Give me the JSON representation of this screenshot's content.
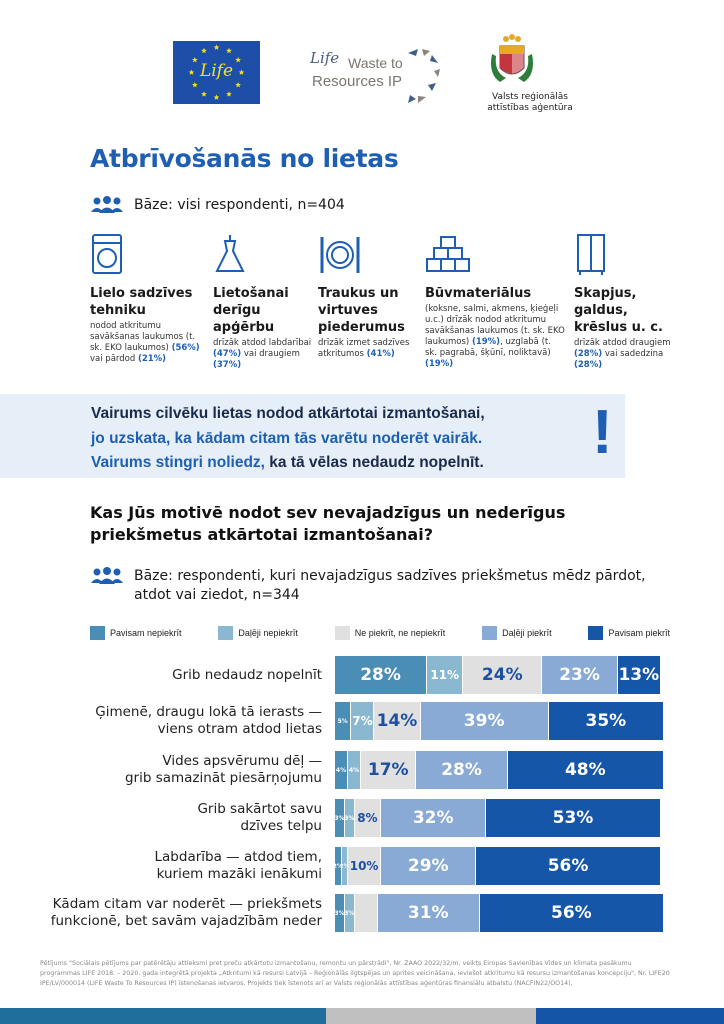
{
  "header": {
    "eu_logo_text": "Life",
    "wtr_logo": {
      "life": "Life",
      "line1": "Waste to",
      "line2": "Resources IP"
    },
    "vraa_text": "Valsts reģionālās attīstības aģentūra"
  },
  "title": "Atbrīvošanās no lietas",
  "base1": "Bāze: visi respondenti, n=404",
  "categories": [
    {
      "icon": "washing-machine-icon",
      "title": "Lielo sadzīves tehniku",
      "text1": "nodod atkritumu savākšanas laukumos (t. sk. EKO laukumos) ",
      "hl1": "(56%)",
      "text2": " vai pārdod ",
      "hl2": "(21%)",
      "text3": ""
    },
    {
      "icon": "dress-icon",
      "title": "Lietošanai derīgu apģērbu",
      "text1": "drīzāk atdod labdarībai ",
      "hl1": "(47%)",
      "text2": " vai draugiem ",
      "hl2": "(37%)",
      "text3": ""
    },
    {
      "icon": "plate-cutlery-icon",
      "title": "Traukus un virtuves piederumus",
      "text1": "drīzāk izmet sadzīves atkritumos ",
      "hl1": "(41%)",
      "text2": "",
      "hl2": "",
      "text3": ""
    },
    {
      "icon": "bricks-icon",
      "title": "Būvmateriālus",
      "text1": "(koksne, salmi, akmens, ķieģeļi u.c.) drīzāk nodod atkritumu savākšanas laukumos (t. sk. EKO laukumos) ",
      "hl1": "(19%)",
      "text2": ", uzglabā (t. sk. pagrabā, šķūnī, noliktavā) ",
      "hl2": "(19%)",
      "text3": ""
    },
    {
      "icon": "wardrobe-icon",
      "title": "Skapjus, galdus, krēslus u. c.",
      "text1": "drīzāk atdod draugiem ",
      "hl1": "(28%)",
      "text2": " vai sadedzina ",
      "hl2": "(28%)",
      "text3": ""
    }
  ],
  "callout": {
    "line1": "Vairums cilvēku lietas nodod atkārtotai izmantošanai,",
    "line2": "jo uzskata, ka kādam citam tās varētu noderēt vairāk.",
    "line3a": "Vairums stingri noliedz,",
    "line3b": " ka tā vēlas nedaudz nopelnīt.",
    "mark": "!"
  },
  "question": "Kas Jūs motivē nodot sev nevajadzīgus un nederīgus priekšmetus atkārtotai izmantošanai?",
  "base2": "Bāze: respondenti, kuri nevajadzīgus sadzīves priekšmetus mēdz pārdot, atdot vai ziedot, n=344",
  "chart_data": {
    "type": "bar",
    "orientation": "horizontal-stacked-100",
    "legend_position": "top",
    "series": [
      {
        "name": "Pavisam nepiekrīt",
        "color": "#4a8db5"
      },
      {
        "name": "Daļēji nepiekrīt",
        "color": "#8ab8d0"
      },
      {
        "name": "Ne piekrīt, ne nepiekrīt",
        "color": "#e0e0e0"
      },
      {
        "name": "Daļēji piekrīt",
        "color": "#88aad4"
      },
      {
        "name": "Pavisam piekrīt",
        "color": "#1556a8"
      }
    ],
    "categories": [
      "Grib nedaudz nopelnīt",
      "Ģimenē, draugu lokā tā ierasts —\nviens otram atdod lietas",
      "Vides apsvērumu dēļ —\ngrib samazināt piesārņojumu",
      "Grib sakārtot savu\ndzīves telpu",
      "Labdarība — atdod tiem,\nkuriem mazāki ienākumi",
      "Kādam citam var noderēt — priekšmets\nfunkcionē, bet savām vajadzībām neder"
    ],
    "values": [
      [
        28,
        11,
        24,
        23,
        13
      ],
      [
        5,
        7,
        14,
        39,
        35
      ],
      [
        4,
        4,
        17,
        28,
        48
      ],
      [
        3,
        3,
        8,
        32,
        53
      ],
      [
        2,
        2,
        10,
        29,
        56
      ],
      [
        3,
        3,
        null,
        31,
        56
      ]
    ],
    "labels": [
      [
        "28%",
        "11%",
        "24%",
        "23%",
        "13%"
      ],
      [
        "5%",
        "7%",
        "14%",
        "39%",
        "35%"
      ],
      [
        "4%",
        "4%",
        "17%",
        "28%",
        "48%"
      ],
      [
        "3%",
        "3%",
        "8%",
        "32%",
        "53%"
      ],
      [
        "2%",
        "2%",
        "10%",
        "29%",
        "56%"
      ],
      [
        "3%",
        "3%",
        "",
        "31%",
        "56%"
      ]
    ]
  },
  "footer": "Pētījums \"Sociālais pētījums par patērētāju attieksmi pret preču atkārtotu izmantošanu, remontu un pārstrādi\", Nr. ZAAO 2022/32/m, veikts Eiropas Savienības Vides un klimata pasākumu programmas LIFE 2018. – 2020. gada integrētā projekta „Atkritumi kā resursi Latvijā – Reģionālās ilgtspējas un aprites veicināšana, ieviešot atkritumu kā resursu izmantošanas koncepciju\", Nr. LIFE20 IPE/LV/000014 (LIFE Waste To Resources IP) īstenošanas ietvaros. Projekts tiek īstenots arī ar Valsts reģionālās attīstības aģentūras finansiālu atbalstu (NACFIN22/OO14).",
  "colors": {
    "accent": "#1e5fb4",
    "band": "#e6eff8",
    "bottom_bar": [
      "#1f6e9c",
      "#c0c0c0",
      "#1555a8"
    ]
  }
}
